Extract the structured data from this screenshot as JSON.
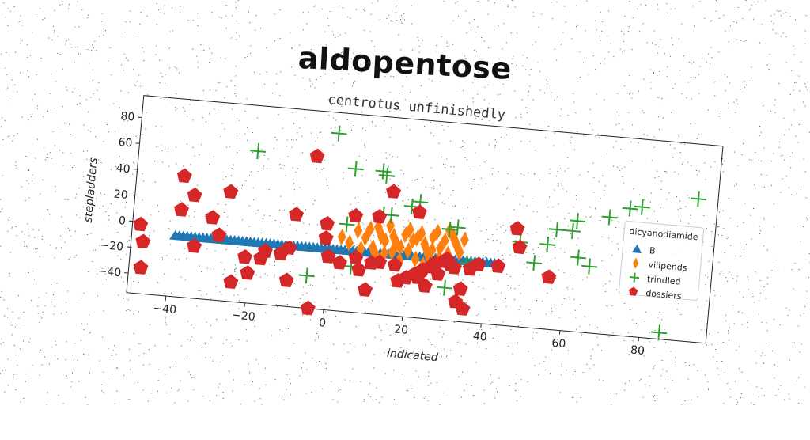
{
  "page": {
    "title": "aldopentose"
  },
  "chart_data": {
    "type": "scatter",
    "title": "centrotus unfinishedly",
    "xlabel": "indicated",
    "ylabel": "stepladders",
    "xlim": [
      -50,
      97
    ],
    "ylim": [
      -55,
      97
    ],
    "xticks": [
      -40,
      -20,
      0,
      20,
      40,
      60,
      80
    ],
    "yticks": [
      -40,
      -20,
      0,
      20,
      40,
      60,
      80
    ],
    "grid": false,
    "legend_title": "dicyanodiamide",
    "legend_position": "right",
    "series": [
      {
        "name": "B",
        "marker": "triangle",
        "color": "#1f77b4",
        "points": [
          [
            -39,
            -8
          ],
          [
            -38,
            -8
          ],
          [
            -37,
            -8
          ],
          [
            -36,
            -8
          ],
          [
            -35,
            -8
          ],
          [
            -34,
            -8
          ],
          [
            -33,
            -8
          ],
          [
            -32,
            -8
          ],
          [
            -31,
            -8
          ],
          [
            -30,
            -8
          ],
          [
            -29,
            -8
          ],
          [
            -28,
            -8
          ],
          [
            -27,
            -8
          ],
          [
            -26,
            -8
          ],
          [
            -25,
            -8
          ],
          [
            -24,
            -8
          ],
          [
            -23,
            -8
          ],
          [
            -22,
            -8
          ],
          [
            -21,
            -8
          ],
          [
            -20,
            -8
          ],
          [
            -19,
            -8
          ],
          [
            -18,
            -8
          ],
          [
            -17,
            -8
          ],
          [
            -16,
            -8
          ],
          [
            -15,
            -8
          ],
          [
            -14,
            -8
          ],
          [
            -13,
            -8
          ],
          [
            -12,
            -8
          ],
          [
            -11,
            -8
          ],
          [
            -10,
            -8
          ],
          [
            -9,
            -8
          ],
          [
            -8,
            -8
          ],
          [
            -7,
            -8
          ],
          [
            -6,
            -8
          ],
          [
            -5,
            -8
          ],
          [
            -4,
            -8
          ],
          [
            -3,
            -8
          ],
          [
            -2,
            -8
          ],
          [
            -1,
            -8
          ],
          [
            0,
            -8
          ],
          [
            1,
            -8
          ],
          [
            2,
            -8
          ],
          [
            3,
            -8
          ],
          [
            4,
            -8
          ],
          [
            5,
            -8
          ],
          [
            6,
            -8
          ],
          [
            7,
            -8
          ],
          [
            8,
            -8
          ],
          [
            9,
            -8
          ],
          [
            10,
            -8
          ],
          [
            11,
            -8
          ],
          [
            12,
            -8
          ],
          [
            13,
            -8
          ],
          [
            14,
            -8
          ],
          [
            15,
            -8
          ],
          [
            16,
            -8
          ],
          [
            17,
            -8
          ],
          [
            18,
            -8
          ],
          [
            19,
            -8
          ],
          [
            20,
            -8
          ],
          [
            21,
            -8
          ],
          [
            22,
            -8
          ],
          [
            23,
            -8
          ],
          [
            24,
            -8
          ],
          [
            25,
            -8
          ],
          [
            26,
            -8
          ],
          [
            27,
            -8
          ],
          [
            28,
            -8
          ],
          [
            29,
            -8
          ],
          [
            30,
            -8
          ],
          [
            31,
            -8
          ],
          [
            32,
            -8
          ],
          [
            33,
            -8
          ],
          [
            34,
            -8
          ],
          [
            35,
            -8
          ],
          [
            36,
            -8
          ],
          [
            37,
            -8
          ],
          [
            38,
            -8
          ],
          [
            39,
            -8
          ],
          [
            40,
            -8
          ],
          [
            41,
            -8
          ],
          [
            42,
            -8
          ]
        ]
      },
      {
        "name": "vilipends",
        "marker": "thin_diamond",
        "color": "#ff7f0e",
        "points": [
          [
            3,
            2
          ],
          [
            5,
            -2
          ],
          [
            7,
            8
          ],
          [
            8,
            -6
          ],
          [
            9,
            3
          ],
          [
            10,
            10
          ],
          [
            11,
            -4
          ],
          [
            12,
            12
          ],
          [
            13,
            5
          ],
          [
            14,
            -8
          ],
          [
            15,
            14
          ],
          [
            16,
            6
          ],
          [
            17,
            0
          ],
          [
            18,
            -2
          ],
          [
            19,
            8
          ],
          [
            20,
            12
          ],
          [
            21,
            4
          ],
          [
            22,
            -10
          ],
          [
            23,
            10
          ],
          [
            24,
            2
          ],
          [
            25,
            -5
          ],
          [
            26,
            8
          ],
          [
            27,
            12
          ],
          [
            28,
            0
          ],
          [
            29,
            6
          ],
          [
            30,
            -4
          ],
          [
            31,
            10
          ],
          [
            32,
            4
          ],
          [
            33,
            -2
          ],
          [
            34,
            8
          ],
          [
            12,
            -10
          ],
          [
            18,
            -12
          ],
          [
            24,
            -14
          ],
          [
            28,
            -8
          ],
          [
            30,
            14
          ],
          [
            22,
            6
          ],
          [
            16,
            -6
          ],
          [
            20,
            -4
          ],
          [
            26,
            -2
          ],
          [
            14,
            2
          ]
        ]
      },
      {
        "name": "trindled",
        "marker": "plus",
        "color": "#2ca02c",
        "points": [
          [
            -20,
            62
          ],
          [
            0,
            81
          ],
          [
            5,
            55
          ],
          [
            12,
            55
          ],
          [
            13,
            52
          ],
          [
            13,
            22
          ],
          [
            15,
            22
          ],
          [
            20,
            30
          ],
          [
            22,
            34
          ],
          [
            30,
            15
          ],
          [
            32,
            17
          ],
          [
            35,
            -10
          ],
          [
            36,
            -10
          ],
          [
            30,
            -30
          ],
          [
            -5,
            -30
          ],
          [
            6,
            -20
          ],
          [
            48,
            10
          ],
          [
            52,
            -5
          ],
          [
            55,
            10
          ],
          [
            57,
            22
          ],
          [
            61,
            22
          ],
          [
            62,
            30
          ],
          [
            63,
            2
          ],
          [
            66,
            -4
          ],
          [
            70,
            35
          ],
          [
            75,
            43
          ],
          [
            78,
            45
          ],
          [
            92,
            55
          ],
          [
            85,
            -50
          ],
          [
            4,
            12
          ]
        ]
      },
      {
        "name": "dossiers",
        "marker": "pentagon",
        "color": "#d62728",
        "points": [
          [
            -48,
            -2
          ],
          [
            -47,
            -15
          ],
          [
            -47,
            -35
          ],
          [
            -38,
            38
          ],
          [
            -38,
            12
          ],
          [
            -35,
            24
          ],
          [
            -34,
            -15
          ],
          [
            -30,
            8
          ],
          [
            -28,
            -5
          ],
          [
            -26,
            29
          ],
          [
            -24,
            -40
          ],
          [
            -21,
            -20
          ],
          [
            -20,
            -32
          ],
          [
            -17,
            -20
          ],
          [
            -16,
            -14
          ],
          [
            -12,
            -15
          ],
          [
            -10,
            -10
          ],
          [
            -10,
            -35
          ],
          [
            -9,
            16
          ],
          [
            -5,
            62
          ],
          [
            -4,
            -55
          ],
          [
            -1,
            0
          ],
          [
            -1,
            11
          ],
          [
            0,
            -14
          ],
          [
            3,
            -18
          ],
          [
            6,
            19
          ],
          [
            7,
            -13
          ],
          [
            8,
            -22
          ],
          [
            10,
            -37
          ],
          [
            11,
            -16
          ],
          [
            12,
            20
          ],
          [
            13,
            -15
          ],
          [
            15,
            40
          ],
          [
            17,
            -16
          ],
          [
            18,
            -28
          ],
          [
            20,
            -25
          ],
          [
            22,
            26
          ],
          [
            22,
            -22
          ],
          [
            23,
            -24
          ],
          [
            24,
            -18
          ],
          [
            25,
            -30
          ],
          [
            26,
            -15
          ],
          [
            27,
            -12
          ],
          [
            28,
            -20
          ],
          [
            29,
            -10
          ],
          [
            30,
            -8
          ],
          [
            31,
            -12
          ],
          [
            32,
            -14
          ],
          [
            33,
            -40
          ],
          [
            34,
            -30
          ],
          [
            35,
            -45
          ],
          [
            36,
            -14
          ],
          [
            38,
            -10
          ],
          [
            43,
            -10
          ],
          [
            47,
            20
          ],
          [
            48,
            6
          ],
          [
            56,
            -15
          ]
        ]
      }
    ]
  }
}
